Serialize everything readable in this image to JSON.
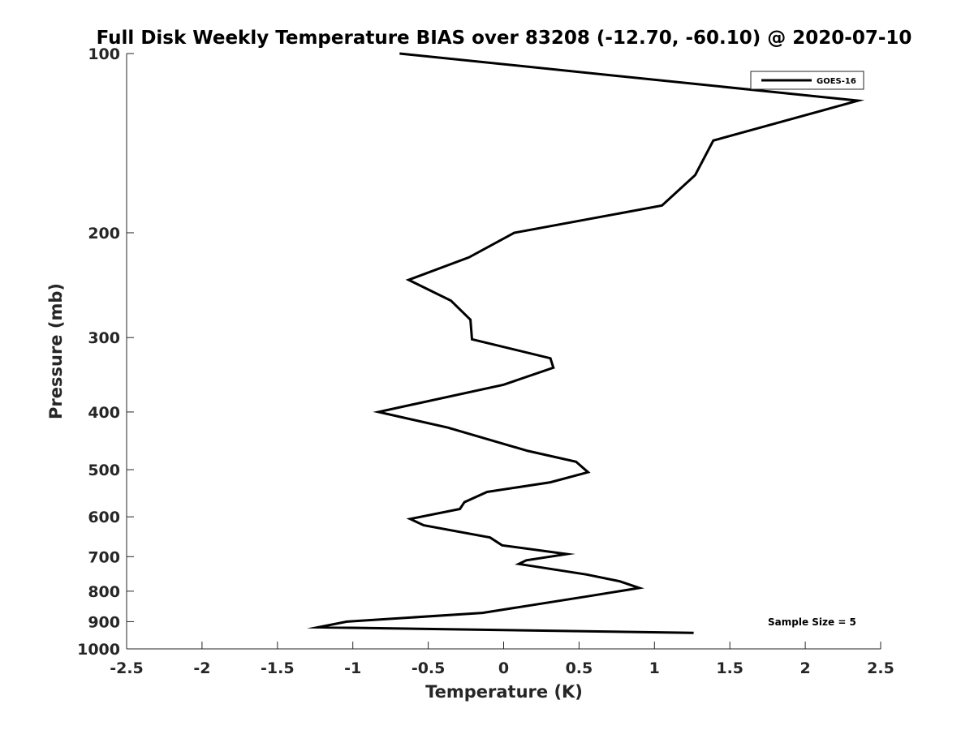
{
  "chart_data": {
    "type": "line",
    "title": "Full Disk Weekly Temperature BIAS over 83208 (-12.70, -60.10) @ 2020-07-10",
    "xlabel": "Temperature (K)",
    "ylabel": "Pressure (mb)",
    "xlim": [
      -2.5,
      2.5
    ],
    "ylim": [
      100,
      1000
    ],
    "yscale": "log",
    "y_reversed": true,
    "grid": false,
    "legend_position": "top-right",
    "xticks": [
      "-2.5",
      "-2",
      "-1.5",
      "-1",
      "-0.5",
      "0",
      "0.5",
      "1",
      "1.5",
      "2",
      "2.5"
    ],
    "yticks": [
      "100",
      "200",
      "300",
      "400",
      "500",
      "600",
      "700",
      "800",
      "900",
      "1000"
    ],
    "annotation": "Sample Size = 5",
    "series": [
      {
        "name": "GOES-16",
        "color": "#000000",
        "x": [
          -0.69,
          2.35,
          1.39,
          1.27,
          1.05,
          0.07,
          -0.23,
          -0.63,
          -0.35,
          -0.22,
          -0.21,
          0.31,
          0.33,
          0.0,
          -0.83,
          -0.37,
          0.16,
          0.48,
          0.56,
          0.31,
          -0.11,
          -0.26,
          -0.29,
          -0.62,
          -0.53,
          -0.09,
          -0.01,
          0.42,
          0.15,
          0.1,
          0.55,
          0.77,
          0.9,
          0.57,
          -0.14,
          -1.04,
          -1.23,
          1.26
        ],
        "y": [
          100,
          120,
          140,
          160,
          180,
          200,
          220,
          240,
          260,
          280,
          302,
          325,
          337,
          360,
          400,
          425,
          465,
          485,
          505,
          525,
          545,
          567,
          582,
          605,
          620,
          650,
          670,
          693,
          710,
          720,
          750,
          770,
          790,
          815,
          870,
          900,
          920,
          940
        ]
      }
    ]
  }
}
